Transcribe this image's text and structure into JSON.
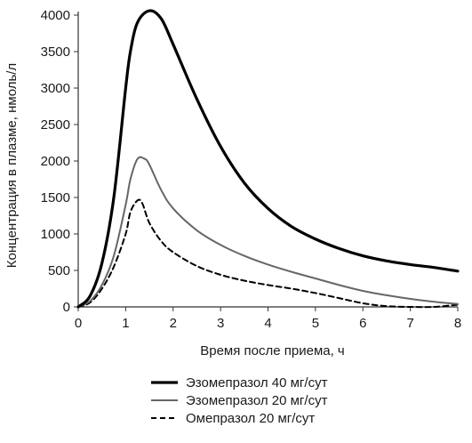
{
  "chart_data": {
    "type": "line",
    "xlabel": "Время после приема, ч",
    "ylabel": "Концентрация в плазме, нмоль/л",
    "xlim": [
      0,
      8
    ],
    "ylim": [
      0,
      4000
    ],
    "x_ticks": [
      0,
      1,
      2,
      3,
      4,
      5,
      6,
      7,
      8
    ],
    "y_ticks": [
      0,
      500,
      1000,
      1500,
      2000,
      2500,
      3000,
      3500,
      4000
    ],
    "grid": false,
    "legend_position": "bottom-center",
    "series": [
      {
        "name": "Эзомепразол 40 мг/сут",
        "style": "solid-thick",
        "color": "#000000",
        "points": [
          [
            0,
            0
          ],
          [
            0.25,
            150
          ],
          [
            0.5,
            600
          ],
          [
            0.75,
            1500
          ],
          [
            1.0,
            3000
          ],
          [
            1.1,
            3500
          ],
          [
            1.25,
            3900
          ],
          [
            1.5,
            4060
          ],
          [
            1.75,
            3950
          ],
          [
            2.0,
            3600
          ],
          [
            2.5,
            2850
          ],
          [
            3.0,
            2200
          ],
          [
            3.5,
            1700
          ],
          [
            4.0,
            1350
          ],
          [
            4.5,
            1100
          ],
          [
            5.0,
            930
          ],
          [
            5.5,
            800
          ],
          [
            6.0,
            700
          ],
          [
            6.5,
            630
          ],
          [
            7.0,
            580
          ],
          [
            7.5,
            540
          ],
          [
            8.0,
            490
          ]
        ]
      },
      {
        "name": "Эзомепразол 20 мг/сут",
        "style": "solid-gray",
        "color": "#666666",
        "points": [
          [
            0,
            0
          ],
          [
            0.25,
            80
          ],
          [
            0.5,
            300
          ],
          [
            0.75,
            700
          ],
          [
            1.0,
            1400
          ],
          [
            1.1,
            1750
          ],
          [
            1.25,
            2030
          ],
          [
            1.4,
            2030
          ],
          [
            1.5,
            1950
          ],
          [
            1.75,
            1600
          ],
          [
            2.0,
            1350
          ],
          [
            2.5,
            1050
          ],
          [
            3.0,
            850
          ],
          [
            3.5,
            700
          ],
          [
            4.0,
            580
          ],
          [
            4.5,
            480
          ],
          [
            5.0,
            390
          ],
          [
            5.5,
            300
          ],
          [
            6.0,
            220
          ],
          [
            6.5,
            160
          ],
          [
            7.0,
            110
          ],
          [
            7.5,
            70
          ],
          [
            8.0,
            40
          ]
        ]
      },
      {
        "name": "Омепразол 20 мг/сут",
        "style": "dashed",
        "color": "#000000",
        "points": [
          [
            0,
            0
          ],
          [
            0.25,
            60
          ],
          [
            0.5,
            250
          ],
          [
            0.75,
            550
          ],
          [
            1.0,
            1000
          ],
          [
            1.1,
            1300
          ],
          [
            1.25,
            1460
          ],
          [
            1.35,
            1420
          ],
          [
            1.5,
            1150
          ],
          [
            1.75,
            900
          ],
          [
            2.0,
            750
          ],
          [
            2.5,
            560
          ],
          [
            3.0,
            440
          ],
          [
            3.5,
            360
          ],
          [
            4.0,
            300
          ],
          [
            4.5,
            250
          ],
          [
            5.0,
            190
          ],
          [
            5.5,
            120
          ],
          [
            6.0,
            50
          ],
          [
            6.5,
            10
          ],
          [
            7.0,
            0
          ],
          [
            7.5,
            0
          ],
          [
            8.0,
            30
          ]
        ]
      }
    ]
  }
}
